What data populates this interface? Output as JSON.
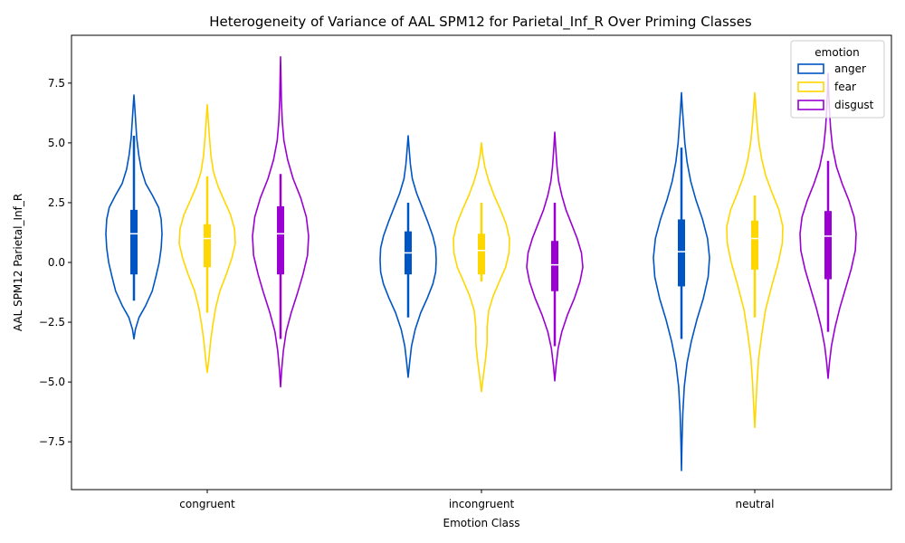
{
  "chart_data": {
    "type": "violin",
    "title": "Heterogeneity of Variance of AAL SPM12 for Parietal_Inf_R Over Priming Classes",
    "xlabel": "Emotion Class",
    "ylabel": "AAL SPM12 Parietal_Inf_R",
    "categories": [
      "congruent",
      "incongruent",
      "neutral"
    ],
    "ylim": [
      -9.5,
      9.5
    ],
    "yticks": [
      -7.5,
      -5.0,
      -2.5,
      0.0,
      2.5,
      5.0,
      7.5
    ],
    "ytick_labels": [
      "−7.5",
      "−5.0",
      "−2.5",
      "0.0",
      "2.5",
      "5.0",
      "7.5"
    ],
    "legend": {
      "title": "emotion",
      "position": "upper right"
    },
    "grid": false,
    "series": [
      {
        "name": "anger",
        "color": "#0055c4",
        "violins": [
          {
            "min": -3.2,
            "q1": -0.5,
            "median": 1.2,
            "q3": 2.2,
            "whisker_low": -1.6,
            "whisker_high": 5.3,
            "max": 7.0,
            "profile": [
              [
                -3.2,
                0.0
              ],
              [
                -2.8,
                0.05
              ],
              [
                -2.3,
                0.18
              ],
              [
                -1.8,
                0.42
              ],
              [
                -1.2,
                0.65
              ],
              [
                -0.6,
                0.78
              ],
              [
                0.0,
                0.9
              ],
              [
                0.6,
                0.97
              ],
              [
                1.2,
                1.0
              ],
              [
                1.8,
                0.97
              ],
              [
                2.3,
                0.88
              ],
              [
                2.8,
                0.66
              ],
              [
                3.3,
                0.42
              ],
              [
                3.9,
                0.26
              ],
              [
                4.5,
                0.17
              ],
              [
                5.2,
                0.1
              ],
              [
                5.9,
                0.06
              ],
              [
                6.5,
                0.03
              ],
              [
                7.0,
                0.0
              ]
            ]
          },
          {
            "min": -4.8,
            "q1": -0.5,
            "median": 0.4,
            "q3": 1.3,
            "whisker_low": -2.3,
            "whisker_high": 2.5,
            "max": 5.3,
            "profile": [
              [
                -4.8,
                0.0
              ],
              [
                -4.2,
                0.05
              ],
              [
                -3.5,
                0.12
              ],
              [
                -2.8,
                0.25
              ],
              [
                -2.1,
                0.45
              ],
              [
                -1.5,
                0.68
              ],
              [
                -0.9,
                0.88
              ],
              [
                -0.4,
                0.98
              ],
              [
                0.1,
                1.0
              ],
              [
                0.6,
                0.98
              ],
              [
                1.1,
                0.88
              ],
              [
                1.7,
                0.7
              ],
              [
                2.3,
                0.5
              ],
              [
                2.9,
                0.3
              ],
              [
                3.5,
                0.15
              ],
              [
                4.1,
                0.08
              ],
              [
                4.7,
                0.04
              ],
              [
                5.3,
                0.0
              ]
            ]
          },
          {
            "min": -8.7,
            "q1": -1.0,
            "median": 0.45,
            "q3": 1.8,
            "whisker_low": -3.2,
            "whisker_high": 4.8,
            "max": 7.1,
            "profile": [
              [
                -8.7,
                0.0
              ],
              [
                -7.5,
                0.02
              ],
              [
                -6.3,
                0.05
              ],
              [
                -5.2,
                0.1
              ],
              [
                -4.2,
                0.2
              ],
              [
                -3.3,
                0.35
              ],
              [
                -2.4,
                0.55
              ],
              [
                -1.5,
                0.78
              ],
              [
                -0.6,
                0.95
              ],
              [
                0.2,
                1.0
              ],
              [
                1.0,
                0.93
              ],
              [
                1.8,
                0.75
              ],
              [
                2.6,
                0.52
              ],
              [
                3.4,
                0.33
              ],
              [
                4.2,
                0.2
              ],
              [
                5.0,
                0.12
              ],
              [
                5.8,
                0.07
              ],
              [
                6.5,
                0.03
              ],
              [
                7.1,
                0.0
              ]
            ]
          }
        ]
      },
      {
        "name": "fear",
        "color": "#ffd700",
        "violins": [
          {
            "min": -4.6,
            "q1": -0.2,
            "median": 1.0,
            "q3": 1.6,
            "whisker_low": -2.1,
            "whisker_high": 3.6,
            "max": 6.6,
            "profile": [
              [
                -4.6,
                0.0
              ],
              [
                -4.0,
                0.06
              ],
              [
                -3.3,
                0.12
              ],
              [
                -2.6,
                0.2
              ],
              [
                -1.9,
                0.3
              ],
              [
                -1.2,
                0.45
              ],
              [
                -0.5,
                0.68
              ],
              [
                0.2,
                0.88
              ],
              [
                0.8,
                1.0
              ],
              [
                1.4,
                0.97
              ],
              [
                2.0,
                0.83
              ],
              [
                2.6,
                0.6
              ],
              [
                3.2,
                0.38
              ],
              [
                3.8,
                0.22
              ],
              [
                4.5,
                0.13
              ],
              [
                5.2,
                0.08
              ],
              [
                5.9,
                0.04
              ],
              [
                6.6,
                0.0
              ]
            ]
          },
          {
            "min": -5.4,
            "q1": -0.5,
            "median": 0.5,
            "q3": 1.2,
            "whisker_low": -0.8,
            "whisker_high": 2.5,
            "max": 5.0,
            "profile": [
              [
                -5.4,
                0.0
              ],
              [
                -4.8,
                0.06
              ],
              [
                -4.1,
                0.14
              ],
              [
                -3.4,
                0.2
              ],
              [
                -2.7,
                0.2
              ],
              [
                -2.0,
                0.26
              ],
              [
                -1.4,
                0.42
              ],
              [
                -0.8,
                0.64
              ],
              [
                -0.2,
                0.86
              ],
              [
                0.4,
                0.98
              ],
              [
                1.0,
                1.0
              ],
              [
                1.6,
                0.88
              ],
              [
                2.2,
                0.68
              ],
              [
                2.8,
                0.45
              ],
              [
                3.4,
                0.26
              ],
              [
                4.0,
                0.12
              ],
              [
                4.5,
                0.05
              ],
              [
                5.0,
                0.0
              ]
            ]
          },
          {
            "min": -6.9,
            "q1": -0.3,
            "median": 1.0,
            "q3": 1.75,
            "whisker_low": -2.3,
            "whisker_high": 2.8,
            "max": 7.1,
            "profile": [
              [
                -6.9,
                0.0
              ],
              [
                -6.0,
                0.04
              ],
              [
                -5.0,
                0.08
              ],
              [
                -4.0,
                0.14
              ],
              [
                -3.0,
                0.25
              ],
              [
                -2.0,
                0.38
              ],
              [
                -1.0,
                0.6
              ],
              [
                0.0,
                0.84
              ],
              [
                0.8,
                0.98
              ],
              [
                1.5,
                1.0
              ],
              [
                2.2,
                0.86
              ],
              [
                2.9,
                0.62
              ],
              [
                3.6,
                0.4
              ],
              [
                4.3,
                0.25
              ],
              [
                5.0,
                0.15
              ],
              [
                5.8,
                0.08
              ],
              [
                6.5,
                0.04
              ],
              [
                7.1,
                0.0
              ]
            ]
          }
        ]
      },
      {
        "name": "disgust",
        "color": "#9b00d3",
        "violins": [
          {
            "min": -5.2,
            "q1": -0.5,
            "median": 1.2,
            "q3": 2.35,
            "whisker_low": -3.2,
            "whisker_high": 3.7,
            "max": 8.6,
            "profile": [
              [
                -5.2,
                0.0
              ],
              [
                -4.5,
                0.04
              ],
              [
                -3.7,
                0.1
              ],
              [
                -2.9,
                0.2
              ],
              [
                -2.1,
                0.38
              ],
              [
                -1.3,
                0.6
              ],
              [
                -0.5,
                0.8
              ],
              [
                0.3,
                0.96
              ],
              [
                1.1,
                1.0
              ],
              [
                1.9,
                0.92
              ],
              [
                2.7,
                0.72
              ],
              [
                3.5,
                0.45
              ],
              [
                4.3,
                0.25
              ],
              [
                5.1,
                0.12
              ],
              [
                5.9,
                0.06
              ],
              [
                6.8,
                0.03
              ],
              [
                7.7,
                0.015
              ],
              [
                8.6,
                0.0
              ]
            ]
          },
          {
            "min": -4.95,
            "q1": -1.2,
            "median": -0.1,
            "q3": 0.9,
            "whisker_low": -3.5,
            "whisker_high": 2.5,
            "max": 5.45,
            "profile": [
              [
                -4.95,
                0.0
              ],
              [
                -4.3,
                0.05
              ],
              [
                -3.6,
                0.12
              ],
              [
                -2.9,
                0.25
              ],
              [
                -2.2,
                0.45
              ],
              [
                -1.5,
                0.7
              ],
              [
                -0.8,
                0.9
              ],
              [
                -0.2,
                1.0
              ],
              [
                0.4,
                0.95
              ],
              [
                1.0,
                0.8
              ],
              [
                1.6,
                0.6
              ],
              [
                2.2,
                0.4
              ],
              [
                2.8,
                0.25
              ],
              [
                3.4,
                0.14
              ],
              [
                4.0,
                0.08
              ],
              [
                4.7,
                0.04
              ],
              [
                5.45,
                0.0
              ]
            ]
          },
          {
            "min": -4.85,
            "q1": -0.7,
            "median": 1.1,
            "q3": 2.15,
            "whisker_low": -2.9,
            "whisker_high": 4.25,
            "max": 7.9,
            "profile": [
              [
                -4.85,
                0.0
              ],
              [
                -4.2,
                0.05
              ],
              [
                -3.5,
                0.12
              ],
              [
                -2.7,
                0.25
              ],
              [
                -1.9,
                0.42
              ],
              [
                -1.1,
                0.62
              ],
              [
                -0.3,
                0.82
              ],
              [
                0.5,
                0.97
              ],
              [
                1.2,
                1.0
              ],
              [
                1.9,
                0.93
              ],
              [
                2.6,
                0.74
              ],
              [
                3.3,
                0.5
              ],
              [
                4.0,
                0.3
              ],
              [
                4.8,
                0.16
              ],
              [
                5.6,
                0.09
              ],
              [
                6.4,
                0.05
              ],
              [
                7.2,
                0.02
              ],
              [
                7.9,
                0.0
              ]
            ]
          }
        ]
      }
    ]
  }
}
